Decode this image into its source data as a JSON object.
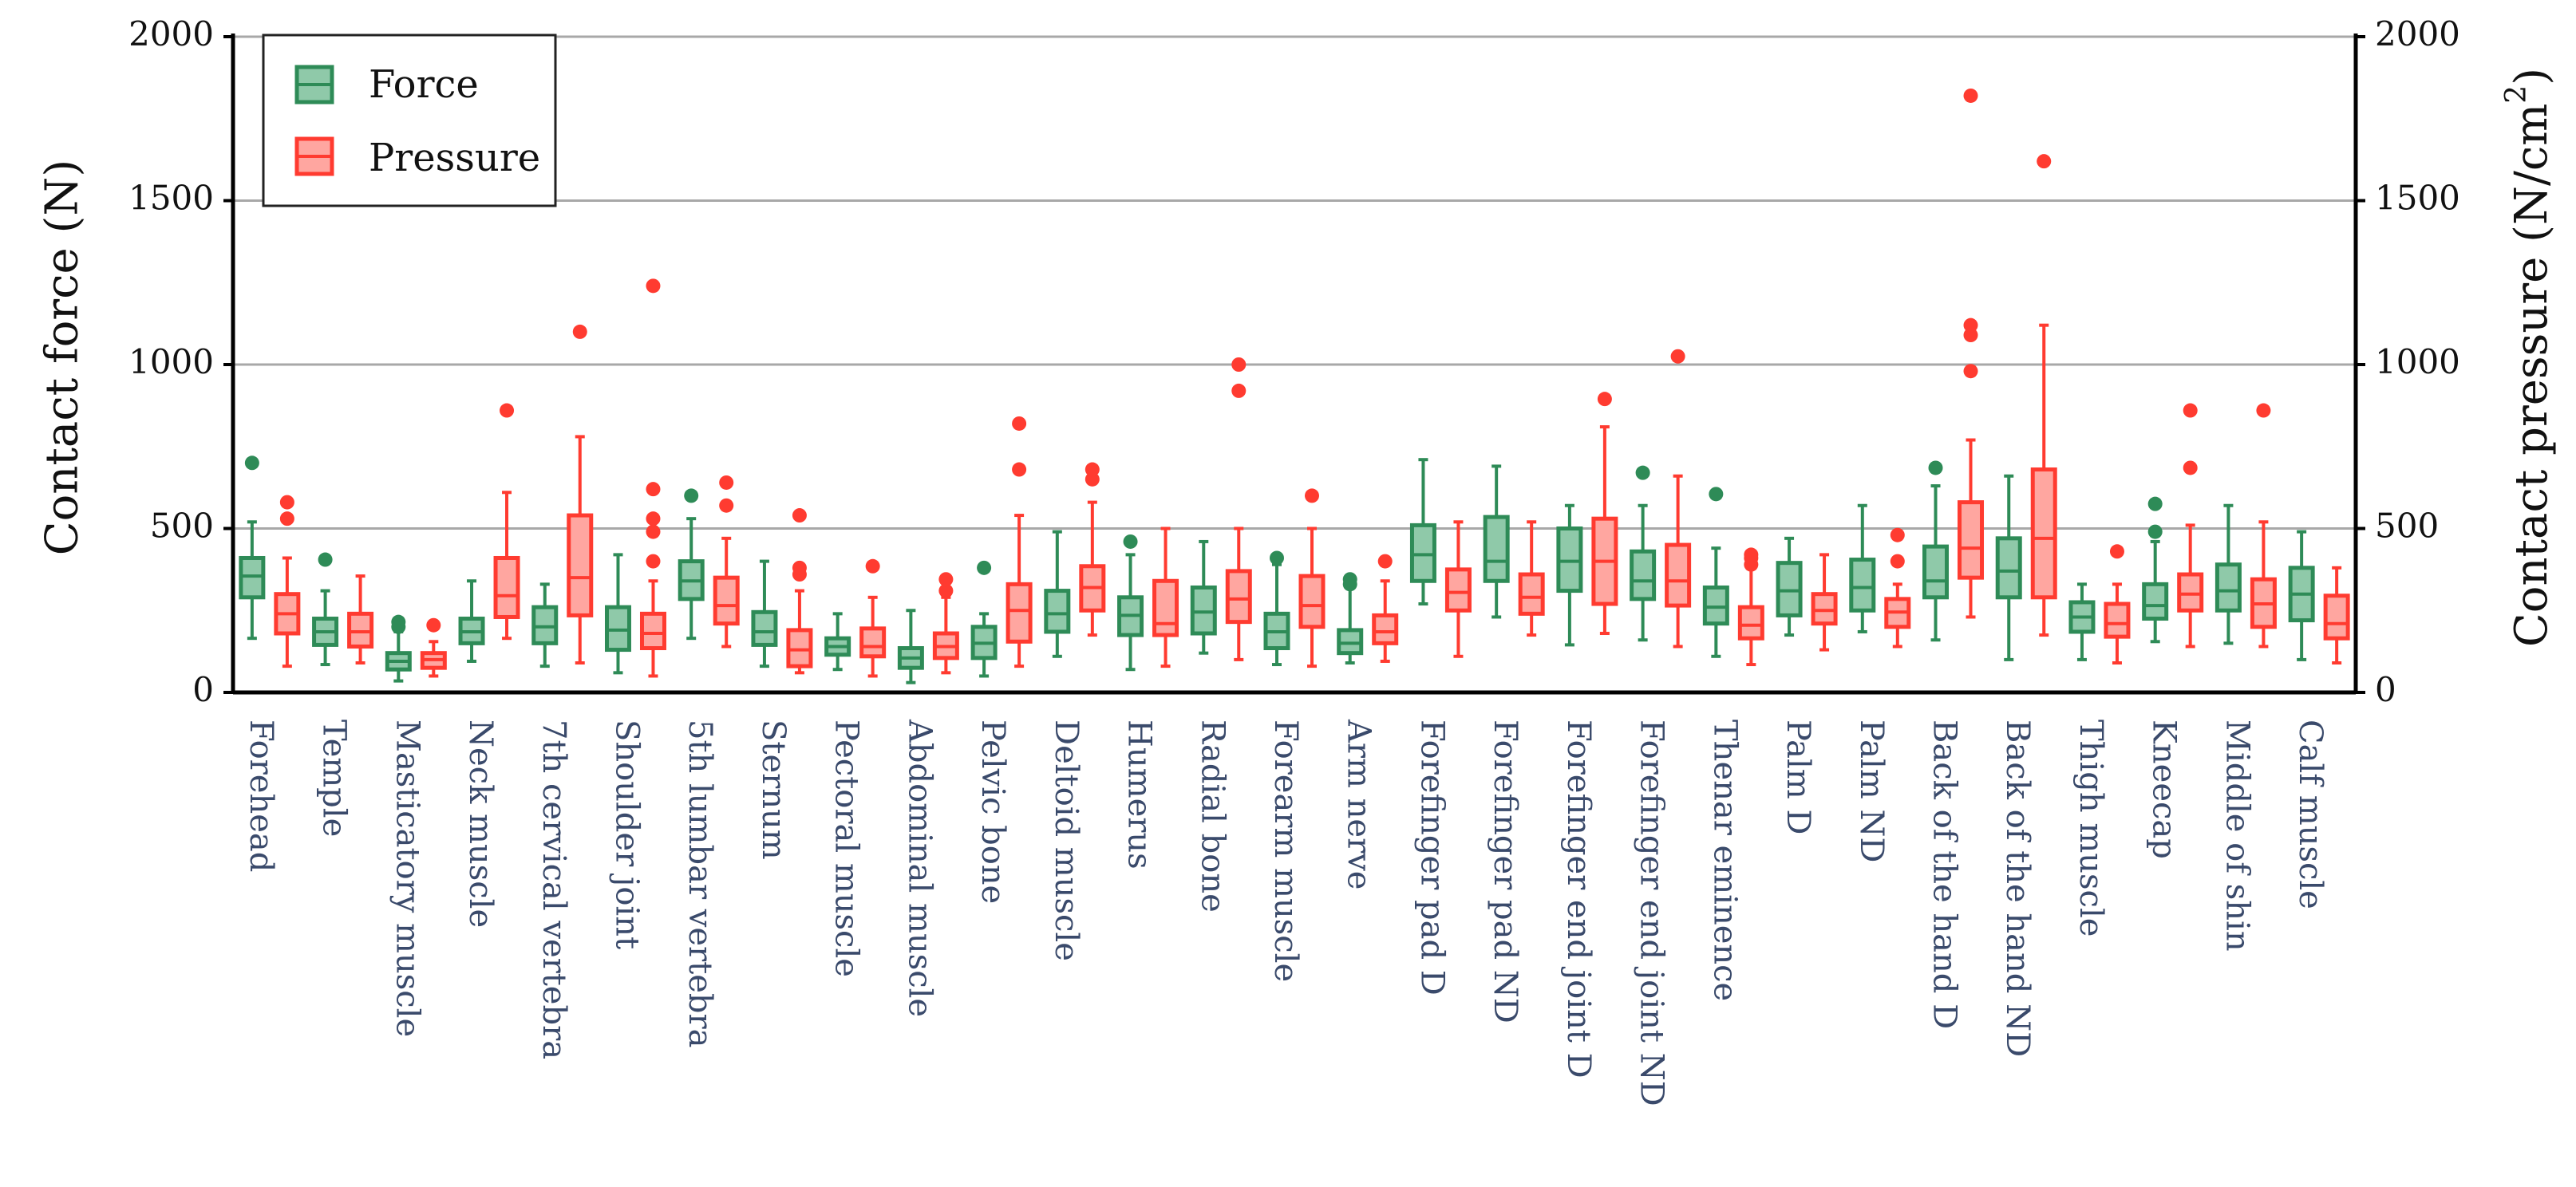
{
  "chart_data": {
    "type": "box",
    "ylabel_left": "Contact force (N)",
    "ylabel_right_text": "Contact pressure (N/cm",
    "ylabel_right_sup": "2",
    "ylabel_right_close": ")",
    "ylim_left": [
      0,
      2000
    ],
    "ylim_right": [
      0,
      2000
    ],
    "yticks": [
      0,
      500,
      1000,
      1500,
      2000
    ],
    "grid": true,
    "legend_position": "top-left",
    "series": [
      {
        "name": "Force",
        "color": "#2e8b57",
        "fill": "#8fc9a9"
      },
      {
        "name": "Pressure",
        "color": "#ff3b30",
        "fill": "#ffa6a0"
      }
    ],
    "categories": [
      "Forehead",
      "Temple",
      "Masticatory muscle",
      "Neck muscle",
      "7th cervical vertebra",
      "Shoulder joint",
      "5th lumbar vertebra",
      "Sternum",
      "Pectoral muscle",
      "Abdominal muscle",
      "Pelvic bone",
      "Deltoid muscle",
      "Humerus",
      "Radial bone",
      "Forearm muscle",
      "Arm nerve",
      "Forefinger pad D",
      "Forefinger pad ND",
      "Forefinger end joint D",
      "Forefinger end joint ND",
      "Thenar eminence",
      "Palm D",
      "Palm ND",
      "Back of the hand D",
      "Back of the hand ND",
      "Thigh muscle",
      "Kneecap",
      "Middle of shin",
      "Calf muscle"
    ],
    "force": [
      {
        "min": 165,
        "q1": 290,
        "median": 355,
        "q3": 410,
        "max": 520,
        "outliers": [
          700
        ]
      },
      {
        "min": 85,
        "q1": 145,
        "median": 185,
        "q3": 225,
        "max": 310,
        "outliers": [
          405
        ]
      },
      {
        "min": 35,
        "q1": 70,
        "median": 95,
        "q3": 120,
        "max": 185,
        "outliers": [
          200,
          215
        ]
      },
      {
        "min": 95,
        "q1": 150,
        "median": 185,
        "q3": 225,
        "max": 340,
        "outliers": []
      },
      {
        "min": 80,
        "q1": 150,
        "median": 200,
        "q3": 260,
        "max": 330,
        "outliers": []
      },
      {
        "min": 60,
        "q1": 130,
        "median": 190,
        "q3": 260,
        "max": 420,
        "outliers": []
      },
      {
        "min": 165,
        "q1": 285,
        "median": 340,
        "q3": 400,
        "max": 530,
        "outliers": [
          600
        ]
      },
      {
        "min": 80,
        "q1": 145,
        "median": 185,
        "q3": 245,
        "max": 400,
        "outliers": []
      },
      {
        "min": 70,
        "q1": 115,
        "median": 140,
        "q3": 165,
        "max": 240,
        "outliers": []
      },
      {
        "min": 30,
        "q1": 75,
        "median": 105,
        "q3": 135,
        "max": 250,
        "outliers": []
      },
      {
        "min": 50,
        "q1": 105,
        "median": 150,
        "q3": 200,
        "max": 240,
        "outliers": [
          380
        ]
      },
      {
        "min": 110,
        "q1": 185,
        "median": 240,
        "q3": 310,
        "max": 490,
        "outliers": []
      },
      {
        "min": 70,
        "q1": 175,
        "median": 235,
        "q3": 290,
        "max": 420,
        "outliers": [
          460
        ]
      },
      {
        "min": 120,
        "q1": 180,
        "median": 245,
        "q3": 320,
        "max": 460,
        "outliers": []
      },
      {
        "min": 85,
        "q1": 135,
        "median": 185,
        "q3": 240,
        "max": 390,
        "outliers": [
          410
        ]
      },
      {
        "min": 90,
        "q1": 120,
        "median": 150,
        "q3": 190,
        "max": 320,
        "outliers": [
          330,
          345
        ]
      },
      {
        "min": 270,
        "q1": 340,
        "median": 420,
        "q3": 510,
        "max": 710,
        "outliers": []
      },
      {
        "min": 230,
        "q1": 340,
        "median": 400,
        "q3": 535,
        "max": 690,
        "outliers": []
      },
      {
        "min": 145,
        "q1": 310,
        "median": 400,
        "q3": 500,
        "max": 570,
        "outliers": []
      },
      {
        "min": 160,
        "q1": 285,
        "median": 340,
        "q3": 430,
        "max": 570,
        "outliers": [
          670
        ]
      },
      {
        "min": 110,
        "q1": 210,
        "median": 260,
        "q3": 320,
        "max": 440,
        "outliers": [
          605
        ]
      },
      {
        "min": 175,
        "q1": 235,
        "median": 310,
        "q3": 395,
        "max": 470,
        "outliers": []
      },
      {
        "min": 185,
        "q1": 250,
        "median": 320,
        "q3": 405,
        "max": 570,
        "outliers": []
      },
      {
        "min": 160,
        "q1": 290,
        "median": 340,
        "q3": 445,
        "max": 630,
        "outliers": [
          685
        ]
      },
      {
        "min": 100,
        "q1": 290,
        "median": 370,
        "q3": 470,
        "max": 660,
        "outliers": []
      },
      {
        "min": 100,
        "q1": 185,
        "median": 230,
        "q3": 275,
        "max": 330,
        "outliers": []
      },
      {
        "min": 155,
        "q1": 225,
        "median": 265,
        "q3": 330,
        "max": 460,
        "outliers": [
          490,
          575
        ]
      },
      {
        "min": 150,
        "q1": 250,
        "median": 310,
        "q3": 390,
        "max": 570,
        "outliers": []
      },
      {
        "min": 100,
        "q1": 220,
        "median": 300,
        "q3": 380,
        "max": 490,
        "outliers": []
      }
    ],
    "pressure": [
      {
        "min": 80,
        "q1": 180,
        "median": 240,
        "q3": 300,
        "max": 410,
        "outliers": [
          530,
          580
        ]
      },
      {
        "min": 90,
        "q1": 140,
        "median": 185,
        "q3": 240,
        "max": 355,
        "outliers": []
      },
      {
        "min": 50,
        "q1": 75,
        "median": 100,
        "q3": 120,
        "max": 155,
        "outliers": [
          205
        ]
      },
      {
        "min": 165,
        "q1": 230,
        "median": 295,
        "q3": 410,
        "max": 610,
        "outliers": [
          860
        ]
      },
      {
        "min": 90,
        "q1": 235,
        "median": 350,
        "q3": 540,
        "max": 780,
        "outliers": [
          1100
        ]
      },
      {
        "min": 50,
        "q1": 135,
        "median": 180,
        "q3": 240,
        "max": 340,
        "outliers": [
          400,
          490,
          530,
          620,
          1240
        ]
      },
      {
        "min": 140,
        "q1": 210,
        "median": 265,
        "q3": 350,
        "max": 470,
        "outliers": [
          570,
          640
        ]
      },
      {
        "min": 60,
        "q1": 80,
        "median": 130,
        "q3": 190,
        "max": 310,
        "outliers": [
          360,
          380,
          540
        ]
      },
      {
        "min": 50,
        "q1": 110,
        "median": 140,
        "q3": 195,
        "max": 290,
        "outliers": [
          385
        ]
      },
      {
        "min": 60,
        "q1": 105,
        "median": 140,
        "q3": 180,
        "max": 290,
        "outliers": [
          310,
          345
        ]
      },
      {
        "min": 80,
        "q1": 155,
        "median": 250,
        "q3": 330,
        "max": 540,
        "outliers": [
          680,
          820
        ]
      },
      {
        "min": 175,
        "q1": 250,
        "median": 320,
        "q3": 385,
        "max": 580,
        "outliers": [
          650,
          680
        ]
      },
      {
        "min": 80,
        "q1": 175,
        "median": 210,
        "q3": 340,
        "max": 500,
        "outliers": []
      },
      {
        "min": 100,
        "q1": 215,
        "median": 285,
        "q3": 370,
        "max": 500,
        "outliers": [
          920,
          1000
        ]
      },
      {
        "min": 80,
        "q1": 200,
        "median": 265,
        "q3": 355,
        "max": 500,
        "outliers": [
          600
        ]
      },
      {
        "min": 95,
        "q1": 150,
        "median": 185,
        "q3": 235,
        "max": 340,
        "outliers": [
          400
        ]
      },
      {
        "min": 110,
        "q1": 250,
        "median": 305,
        "q3": 375,
        "max": 520,
        "outliers": []
      },
      {
        "min": 175,
        "q1": 240,
        "median": 290,
        "q3": 360,
        "max": 520,
        "outliers": []
      },
      {
        "min": 180,
        "q1": 270,
        "median": 400,
        "q3": 530,
        "max": 810,
        "outliers": [
          895
        ]
      },
      {
        "min": 140,
        "q1": 265,
        "median": 340,
        "q3": 450,
        "max": 660,
        "outliers": [
          1025
        ]
      },
      {
        "min": 85,
        "q1": 165,
        "median": 205,
        "q3": 260,
        "max": 380,
        "outliers": [
          390,
          410,
          420
        ]
      },
      {
        "min": 130,
        "q1": 210,
        "median": 250,
        "q3": 300,
        "max": 420,
        "outliers": []
      },
      {
        "min": 140,
        "q1": 200,
        "median": 245,
        "q3": 285,
        "max": 330,
        "outliers": [
          400,
          480
        ]
      },
      {
        "min": 230,
        "q1": 350,
        "median": 440,
        "q3": 580,
        "max": 770,
        "outliers": [
          980,
          1090,
          1120,
          1820
        ]
      },
      {
        "min": 175,
        "q1": 290,
        "median": 470,
        "q3": 680,
        "max": 1120,
        "outliers": [
          1620
        ]
      },
      {
        "min": 90,
        "q1": 170,
        "median": 210,
        "q3": 270,
        "max": 330,
        "outliers": [
          430
        ]
      },
      {
        "min": 140,
        "q1": 250,
        "median": 300,
        "q3": 360,
        "max": 510,
        "outliers": [
          685,
          860
        ]
      },
      {
        "min": 140,
        "q1": 200,
        "median": 270,
        "q3": 345,
        "max": 520,
        "outliers": [
          860
        ]
      },
      {
        "min": 90,
        "q1": 165,
        "median": 210,
        "q3": 295,
        "max": 380,
        "outliers": []
      }
    ]
  }
}
